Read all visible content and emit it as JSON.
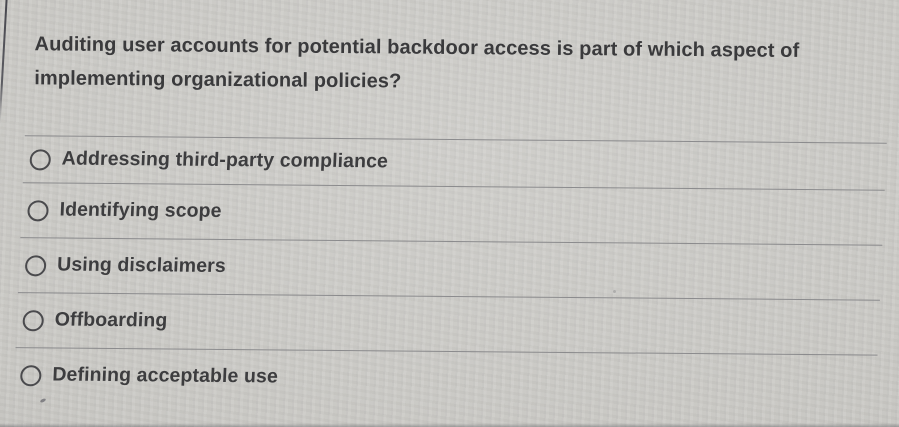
{
  "question": {
    "text": "Auditing user accounts for potential backdoor access is part of which aspect of implementing organizational policies?"
  },
  "options": [
    {
      "label": "Addressing third-party compliance",
      "selected": false,
      "radio_icon": "empty-circle"
    },
    {
      "label": "Identifying scope",
      "selected": false,
      "radio_icon": "empty-circle"
    },
    {
      "label": "Using disclaimers",
      "selected": false,
      "radio_icon": "empty-circle"
    },
    {
      "label": "Offboarding",
      "selected": false,
      "radio_icon": "empty-circle"
    },
    {
      "label": "Defining acceptable use",
      "selected": false,
      "radio_icon": "empty-circle"
    }
  ],
  "colors": {
    "background": "#c9c8c4",
    "question_text": "#3a3a3c",
    "option_text": "#3d3d3f",
    "divider": "#8b8b8d",
    "radio_border": "#4a4a4d"
  }
}
